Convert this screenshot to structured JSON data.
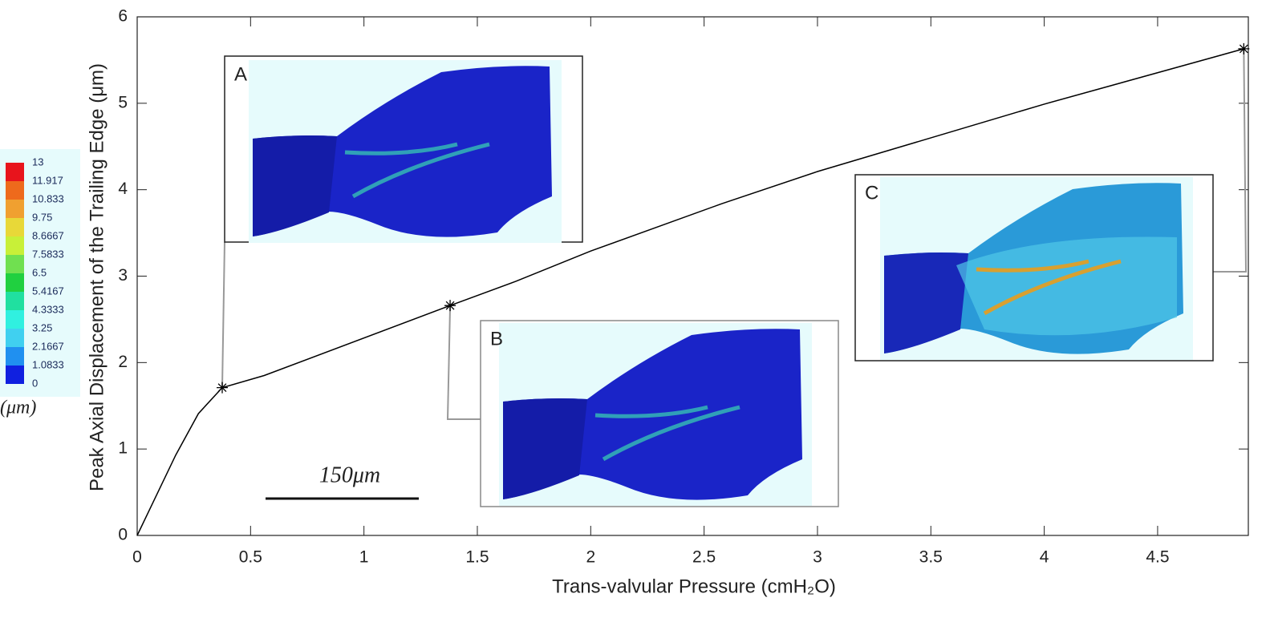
{
  "chart_data": {
    "type": "line",
    "xlabel": "Trans-valvular Pressure (cmH₂O)",
    "ylabel": "Peak Axial Displacement of the Trailing Edge (μm)",
    "xlim": [
      0,
      4.9
    ],
    "ylim": [
      0,
      6
    ],
    "xticks": [
      0,
      0.5,
      1,
      1.5,
      2,
      2.5,
      3,
      3.5,
      4,
      4.5
    ],
    "yticks": [
      0,
      1,
      2,
      3,
      4,
      5,
      6
    ],
    "series": [
      {
        "color": "#000000",
        "x": [
          0,
          0.17,
          0.27,
          0.375,
          0.56,
          1.38,
          1.67,
          2.0,
          2.58,
          3.0,
          4.0,
          4.88
        ],
        "values": [
          0,
          0.93,
          1.41,
          1.71,
          1.85,
          2.66,
          2.94,
          3.29,
          3.84,
          4.21,
          4.99,
          5.63
        ]
      },
      {
        "color": "#000000",
        "marker": "*",
        "x": [
          0.375,
          1.38,
          4.88
        ],
        "values": [
          1.71,
          2.66,
          5.63
        ]
      }
    ],
    "insets": [
      "A",
      "B",
      "C"
    ],
    "scale_bar": "150μm",
    "colorbar": {
      "unit": "(μm)",
      "ticks": [
        13,
        11.917,
        10.833,
        9.75,
        8.6667,
        7.5833,
        6.5,
        5.4167,
        4.3333,
        3.25,
        2.1667,
        1.0833,
        0
      ],
      "colors": [
        "#e8141c",
        "#ee6a1c",
        "#f0a030",
        "#e8d838",
        "#c8f038",
        "#70e050",
        "#20d040",
        "#20e0a0",
        "#30f0e0",
        "#40d0f0",
        "#2090f0",
        "#1020e0"
      ]
    }
  }
}
